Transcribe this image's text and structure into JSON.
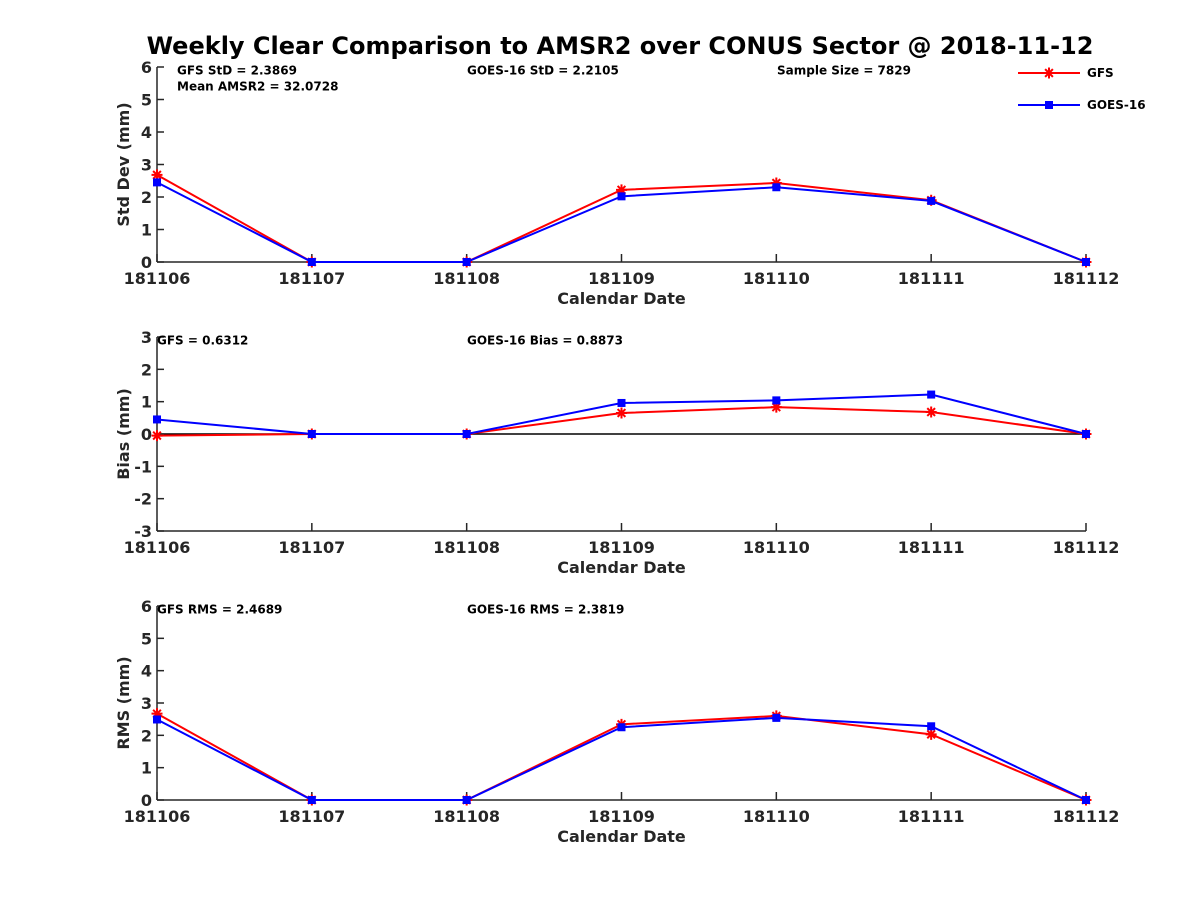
{
  "figure": {
    "title": "Weekly Clear Comparison to AMSR2 over CONUS Sector @ 2018-11-12"
  },
  "legend": {
    "placement": "top-right",
    "items": [
      {
        "label": "GFS",
        "color": "#ff0000",
        "marker": "asterisk"
      },
      {
        "label": "GOES-16",
        "color": "#0000ff",
        "marker": "square"
      }
    ]
  },
  "chart_data": [
    {
      "type": "line",
      "xlabel": "Calendar Date",
      "ylabel": "Std Dev (mm)",
      "categories": [
        "181106",
        "181107",
        "181108",
        "181109",
        "181110",
        "181111",
        "181112"
      ],
      "ylim": [
        0,
        6
      ],
      "yticks": [
        "0",
        "1",
        "2",
        "3",
        "4",
        "5",
        "6"
      ],
      "grid": false,
      "series": [
        {
          "name": "GFS",
          "color": "#ff0000",
          "marker": "asterisk",
          "values": [
            2.68,
            0,
            0,
            2.22,
            2.43,
            1.9,
            0
          ]
        },
        {
          "name": "GOES-16",
          "color": "#0000ff",
          "marker": "square",
          "values": [
            2.45,
            0,
            0,
            2.02,
            2.3,
            1.88,
            0
          ]
        }
      ],
      "annotations": [
        "GFS StD = 2.3869",
        "Mean AMSR2 = 32.0728",
        "GOES-16 StD = 2.2105",
        "Sample Size = 7829"
      ]
    },
    {
      "type": "line",
      "xlabel": "Calendar Date",
      "ylabel": "Bias (mm)",
      "categories": [
        "181106",
        "181107",
        "181108",
        "181109",
        "181110",
        "181111",
        "181112"
      ],
      "ylim": [
        -3,
        3
      ],
      "yticks": [
        "-3",
        "-2",
        "-1",
        "0",
        "1",
        "2",
        "3"
      ],
      "grid": false,
      "reference_line": 0,
      "series": [
        {
          "name": "GFS",
          "color": "#ff0000",
          "marker": "asterisk",
          "values": [
            -0.05,
            0,
            0,
            0.65,
            0.83,
            0.68,
            0
          ]
        },
        {
          "name": "GOES-16",
          "color": "#0000ff",
          "marker": "square",
          "values": [
            0.45,
            0,
            0,
            0.96,
            1.04,
            1.22,
            0
          ]
        }
      ],
      "annotations": [
        "GFS = 0.6312",
        "GOES-16 Bias  = 0.8873"
      ]
    },
    {
      "type": "line",
      "xlabel": "Calendar Date",
      "ylabel": "RMS (mm)",
      "categories": [
        "181106",
        "181107",
        "181108",
        "181109",
        "181110",
        "181111",
        "181112"
      ],
      "ylim": [
        0,
        6
      ],
      "yticks": [
        "0",
        "1",
        "2",
        "3",
        "4",
        "5",
        "6"
      ],
      "grid": false,
      "series": [
        {
          "name": "GFS",
          "color": "#ff0000",
          "marker": "asterisk",
          "values": [
            2.67,
            0,
            0,
            2.34,
            2.6,
            2.03,
            0
          ]
        },
        {
          "name": "GOES-16",
          "color": "#0000ff",
          "marker": "square",
          "values": [
            2.49,
            0,
            0,
            2.25,
            2.54,
            2.28,
            0
          ]
        }
      ],
      "annotations": [
        "GFS RMS = 2.4689",
        "GOES-16 RMS = 2.3819"
      ]
    }
  ]
}
